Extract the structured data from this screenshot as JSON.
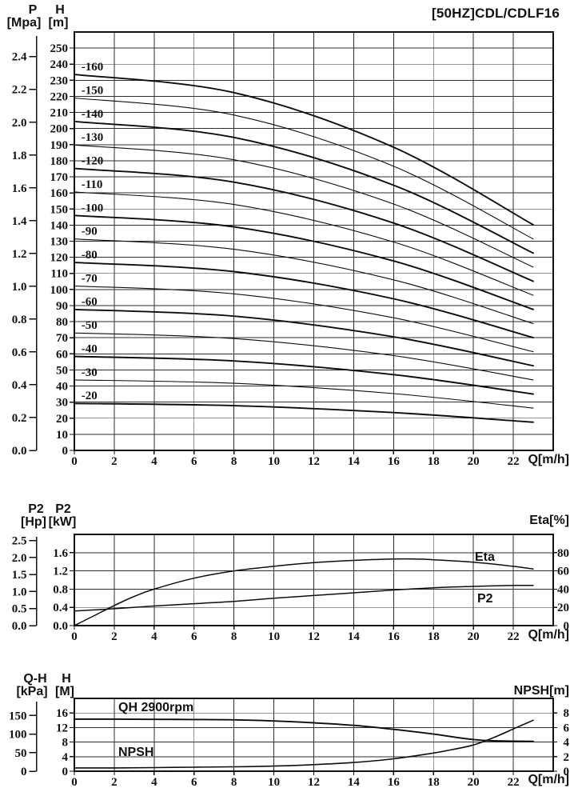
{
  "title": "[50HZ]CDL/CDLF16",
  "x_unit_label": "Q[m/h]",
  "colors": {
    "ink": "#111111",
    "grid": "#2e2e2e",
    "curve": "#0d0d0d",
    "background": "#ffffff"
  },
  "chart_data": [
    {
      "id": "head",
      "type": "line",
      "title": "[50HZ]CDL/CDLF16",
      "xlabel": "Q[m/h]",
      "xlim": [
        0,
        24
      ],
      "x_ticks": [
        0,
        2,
        4,
        6,
        8,
        10,
        12,
        14,
        16,
        18,
        20,
        22
      ],
      "grid": true,
      "y_left_primary": {
        "label": "P",
        "unit": "[Mpa]",
        "ticks": [
          "0.0",
          "0.2",
          "0.4",
          "0.6",
          "0.8",
          "1.0",
          "1.2",
          "1.4",
          "1.6",
          "1.8",
          "2.0",
          "2.2",
          "2.4"
        ]
      },
      "y_left_secondary": {
        "label": "H",
        "unit": "[m]",
        "lim": [
          0,
          260
        ],
        "ticks": [
          0,
          10,
          20,
          30,
          40,
          50,
          60,
          70,
          80,
          90,
          100,
          110,
          120,
          130,
          140,
          150,
          160,
          170,
          180,
          190,
          200,
          210,
          220,
          230,
          240,
          250
        ]
      },
      "series": [
        {
          "name": "-160",
          "bold": true,
          "points": [
            [
              0,
              233.6
            ],
            [
              8,
              222.3
            ],
            [
              16,
              188.4
            ],
            [
              23,
              140.2
            ]
          ]
        },
        {
          "name": "-150",
          "bold": false,
          "points": [
            [
              0,
              219.0
            ],
            [
              8,
              208.4
            ],
            [
              16,
              176.6
            ],
            [
              23,
              131.4
            ]
          ]
        },
        {
          "name": "-140",
          "bold": true,
          "points": [
            [
              0,
              204.4
            ],
            [
              8,
              194.5
            ],
            [
              16,
              164.8
            ],
            [
              23,
              122.6
            ]
          ]
        },
        {
          "name": "-130",
          "bold": false,
          "points": [
            [
              0,
              189.8
            ],
            [
              8,
              180.6
            ],
            [
              16,
              153.1
            ],
            [
              23,
              113.9
            ]
          ]
        },
        {
          "name": "-120",
          "bold": true,
          "points": [
            [
              0,
              175.2
            ],
            [
              8,
              166.7
            ],
            [
              16,
              141.3
            ],
            [
              23,
              105.1
            ]
          ]
        },
        {
          "name": "-110",
          "bold": false,
          "points": [
            [
              0,
              160.6
            ],
            [
              8,
              152.8
            ],
            [
              16,
              129.5
            ],
            [
              23,
              96.4
            ]
          ]
        },
        {
          "name": "-100",
          "bold": true,
          "points": [
            [
              0,
              146.0
            ],
            [
              8,
              138.9
            ],
            [
              16,
              117.7
            ],
            [
              23,
              87.6
            ]
          ]
        },
        {
          "name": "-90",
          "bold": false,
          "points": [
            [
              0,
              131.4
            ],
            [
              8,
              125.0
            ],
            [
              16,
              106.0
            ],
            [
              23,
              78.8
            ]
          ]
        },
        {
          "name": "-80",
          "bold": true,
          "points": [
            [
              0,
              116.8
            ],
            [
              8,
              111.1
            ],
            [
              16,
              94.2
            ],
            [
              23,
              70.1
            ]
          ]
        },
        {
          "name": "-70",
          "bold": false,
          "points": [
            [
              0,
              102.2
            ],
            [
              8,
              97.3
            ],
            [
              16,
              82.4
            ],
            [
              23,
              61.3
            ]
          ]
        },
        {
          "name": "-60",
          "bold": true,
          "points": [
            [
              0,
              87.6
            ],
            [
              8,
              83.4
            ],
            [
              16,
              70.6
            ],
            [
              23,
              52.6
            ]
          ]
        },
        {
          "name": "-50",
          "bold": false,
          "points": [
            [
              0,
              73.0
            ],
            [
              8,
              69.5
            ],
            [
              16,
              58.9
            ],
            [
              23,
              43.8
            ]
          ]
        },
        {
          "name": "-40",
          "bold": true,
          "points": [
            [
              0,
              58.4
            ],
            [
              8,
              55.6
            ],
            [
              16,
              47.1
            ],
            [
              23,
              35.0
            ]
          ]
        },
        {
          "name": "-30",
          "bold": false,
          "points": [
            [
              0,
              43.8
            ],
            [
              8,
              41.7
            ],
            [
              16,
              35.3
            ],
            [
              23,
              26.3
            ]
          ]
        },
        {
          "name": "-20",
          "bold": true,
          "points": [
            [
              0,
              29.2
            ],
            [
              8,
              27.8
            ],
            [
              16,
              23.5
            ],
            [
              23,
              17.5
            ]
          ]
        }
      ]
    },
    {
      "id": "power",
      "type": "line",
      "xlabel": "Q[m/h]",
      "xlim": [
        0,
        24
      ],
      "x_ticks": [
        0,
        2,
        4,
        6,
        8,
        10,
        12,
        14,
        16,
        18,
        20,
        22
      ],
      "grid": true,
      "y_left_primary": {
        "label": "P2",
        "unit": "[Hp]",
        "ticks": [
          "0.0",
          "0.5",
          "1.0",
          "1.5",
          "2.0",
          "2.5"
        ]
      },
      "y_left_secondary": {
        "label": "P2",
        "unit": "[kW]",
        "lim": [
          0,
          2.0
        ],
        "ticks": [
          "0.0",
          "0.4",
          "0.8",
          "1.2",
          "1.6"
        ]
      },
      "y_right": {
        "label": "Eta[%]",
        "lim": [
          0,
          100
        ],
        "ticks": [
          0,
          20,
          40,
          60,
          80
        ]
      },
      "series": [
        {
          "name": "Eta",
          "unit": "%",
          "points": [
            [
              0,
              0
            ],
            [
              1,
              11
            ],
            [
              2,
              22
            ],
            [
              3,
              32
            ],
            [
              4,
              40
            ],
            [
              6,
              52
            ],
            [
              8,
              60
            ],
            [
              10,
              65
            ],
            [
              12,
              69
            ],
            [
              14,
              71.5
            ],
            [
              16,
              73
            ],
            [
              17,
              73
            ],
            [
              18,
              72.2
            ],
            [
              20,
              69.5
            ],
            [
              22,
              65
            ],
            [
              23,
              62
            ]
          ]
        },
        {
          "name": "P2",
          "unit": "kW",
          "points": [
            [
              0,
              0.32
            ],
            [
              2,
              0.37
            ],
            [
              4,
              0.43
            ],
            [
              6,
              0.48
            ],
            [
              8,
              0.53
            ],
            [
              10,
              0.6
            ],
            [
              12,
              0.66
            ],
            [
              14,
              0.72
            ],
            [
              16,
              0.78
            ],
            [
              18,
              0.83
            ],
            [
              20,
              0.86
            ],
            [
              22,
              0.88
            ],
            [
              23,
              0.88
            ]
          ]
        }
      ]
    },
    {
      "id": "npsh",
      "type": "line",
      "xlabel": "Q[m/h]",
      "xlim": [
        0,
        24
      ],
      "x_ticks": [
        0,
        2,
        4,
        6,
        8,
        10,
        12,
        14,
        16,
        18,
        20,
        22
      ],
      "grid": true,
      "y_left_primary": {
        "label": "Q-H",
        "unit": "[kPa]",
        "ticks": [
          0,
          50,
          100,
          150
        ]
      },
      "y_left_secondary": {
        "label": "H",
        "unit": "[M]",
        "lim": [
          0,
          20
        ],
        "ticks": [
          0,
          4,
          8,
          12,
          16
        ]
      },
      "y_right": {
        "label": "NPSH[m]",
        "lim": [
          0,
          10
        ],
        "ticks": [
          0,
          2,
          4,
          6,
          8
        ]
      },
      "series": [
        {
          "name": "QH 2900rpm",
          "unit": "m",
          "points": [
            [
              0,
              14.3
            ],
            [
              2,
              14.3
            ],
            [
              4,
              14.25
            ],
            [
              6,
              14.2
            ],
            [
              8,
              14.1
            ],
            [
              10,
              13.8
            ],
            [
              12,
              13.3
            ],
            [
              14,
              12.6
            ],
            [
              16,
              11.5
            ],
            [
              18,
              10.2
            ],
            [
              19,
              9.4
            ],
            [
              20,
              8.7
            ],
            [
              21,
              8.35
            ],
            [
              22,
              8.25
            ],
            [
              23,
              8.2
            ]
          ]
        },
        {
          "name": "NPSH",
          "unit": "m",
          "points": [
            [
              0,
              0.45
            ],
            [
              2,
              0.45
            ],
            [
              4,
              0.5
            ],
            [
              6,
              0.55
            ],
            [
              8,
              0.6
            ],
            [
              10,
              0.7
            ],
            [
              12,
              0.9
            ],
            [
              14,
              1.2
            ],
            [
              16,
              1.7
            ],
            [
              18,
              2.5
            ],
            [
              19,
              3.0
            ],
            [
              20,
              3.6
            ],
            [
              21,
              4.6
            ],
            [
              22,
              5.8
            ],
            [
              23,
              7.0
            ]
          ]
        }
      ]
    }
  ]
}
